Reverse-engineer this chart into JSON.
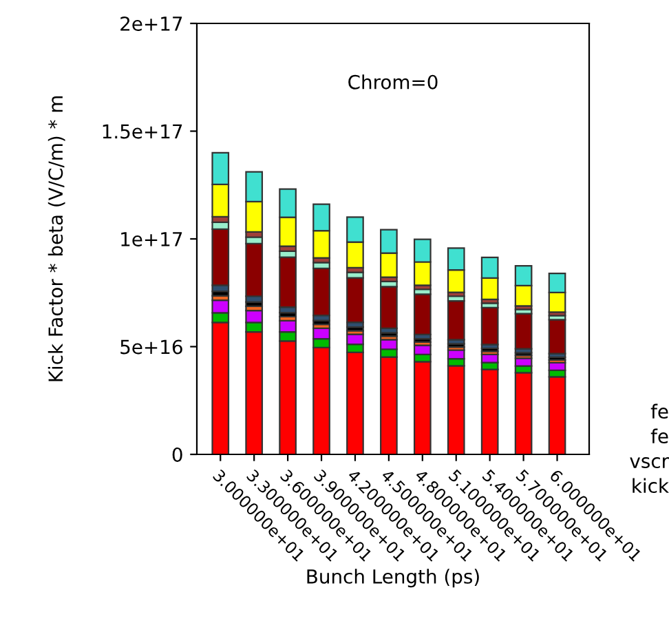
{
  "chart_data": {
    "type": "bar",
    "stacked": true,
    "xlabel": "Bunch Length (ps)",
    "ylabel": "Kick Factor * beta (V/C/m) * m",
    "annotations": [
      "Chrom=0",
      "fe",
      "fe",
      "vscr",
      "kick"
    ],
    "categories": [
      "3.000000e+01",
      "3.300000e+01",
      "3.600000e+01",
      "3.900000e+01",
      "4.200000e+01",
      "4.500000e+01",
      "4.800000e+01",
      "5.100000e+01",
      "5.400000e+01",
      "5.700000e+01",
      "6.000000e+01"
    ],
    "ylim": [
      0,
      2e+17
    ],
    "yticks": [
      0,
      {
        "value": 5e+16,
        "label": "5e+16"
      },
      {
        "value": 1e+17,
        "label": "1e+17"
      },
      {
        "value": 1.5e+17,
        "label": "1.5e+17"
      },
      {
        "value": 2e+17,
        "label": "2e+17"
      }
    ],
    "grid": false,
    "legend": false,
    "series": [
      {
        "color": "#ff0000",
        "values": [
          6.12e+16,
          5.68e+16,
          5.26e+16,
          4.96e+16,
          4.73e+16,
          4.52e+16,
          4.3e+16,
          4.11e+16,
          3.94e+16,
          3.79e+16,
          3.6e+16
        ]
      },
      {
        "color": "#00bb00",
        "values": [
          4500000000000000.0,
          4400000000000000.0,
          4200000000000000.0,
          4000000000000000.0,
          3800000000000000.0,
          3600000000000000.0,
          3400000000000000.0,
          3300000000000000.0,
          3200000000000000.0,
          3100000000000000.0,
          3000000000000000.0
        ]
      },
      {
        "color": "#cc00ff",
        "values": [
          5800000000000000.0,
          5500000000000000.0,
          5200000000000000.0,
          4900000000000000.0,
          4600000000000000.0,
          4400000000000000.0,
          4200000000000000.0,
          4000000000000000.0,
          3800000000000000.0,
          3600000000000000.0,
          3500000000000000.0
        ]
      },
      {
        "color": "#ee6622",
        "values": [
          2100000000000000.0,
          2000000000000000.0,
          1900000000000000.0,
          1800000000000000.0,
          1700000000000000.0,
          1600000000000000.0,
          1500000000000000.0,
          1400000000000000.0,
          1400000000000000.0,
          1300000000000000.0,
          1300000000000000.0
        ]
      },
      {
        "color": "#000000",
        "values": [
          2100000000000000.0,
          2000000000000000.0,
          1900000000000000.0,
          1800000000000000.0,
          1700000000000000.0,
          1600000000000000.0,
          1500000000000000.0,
          1500000000000000.0,
          1400000000000000.0,
          1300000000000000.0,
          1300000000000000.0
        ]
      },
      {
        "color": "#2f4f6f",
        "values": [
          2800000000000000.0,
          2700000000000000.0,
          2500000000000000.0,
          2400000000000000.0,
          2200000000000000.0,
          2100000000000000.0,
          2000000000000000.0,
          1900000000000000.0,
          1800000000000000.0,
          1800000000000000.0,
          1700000000000000.0
        ]
      },
      {
        "color": "#8b0000",
        "values": [
          2.6e+16,
          2.44e+16,
          2.32e+16,
          2.18e+16,
          2.06e+16,
          1.93e+16,
          1.87e+16,
          1.8e+16,
          1.71e+16,
          1.63e+16,
          1.57e+16
        ]
      },
      {
        "color": "#99eecc",
        "values": [
          3200000000000000.0,
          3000000000000000.0,
          2800000000000000.0,
          2700000000000000.0,
          2600000000000000.0,
          2400000000000000.0,
          2300000000000000.0,
          2200000000000000.0,
          2100000000000000.0,
          2000000000000000.0,
          1900000000000000.0
        ]
      },
      {
        "color": "#a0403a",
        "values": [
          2600000000000000.0,
          2400000000000000.0,
          2300000000000000.0,
          2200000000000000.0,
          2100000000000000.0,
          2000000000000000.0,
          1900000000000000.0,
          1800000000000000.0,
          1700000000000000.0,
          1600000000000000.0,
          1600000000000000.0
        ]
      },
      {
        "color": "#ffff00",
        "values": [
          1.5e+16,
          1.41e+16,
          1.34e+16,
          1.26e+16,
          1.19e+16,
          1.12e+16,
          1.08e+16,
          1.04e+16,
          9900000000000000.0,
          9400000000000000.0,
          9100000000000000.0
        ]
      },
      {
        "color": "#40e0d0",
        "values": [
          1.47e+16,
          1.38e+16,
          1.31e+16,
          1.23e+16,
          1.16e+16,
          1.09e+16,
          1.05e+16,
          1.01e+16,
          9600000000000000.0,
          9200000000000000.0,
          8900000000000000.0
        ]
      }
    ]
  }
}
